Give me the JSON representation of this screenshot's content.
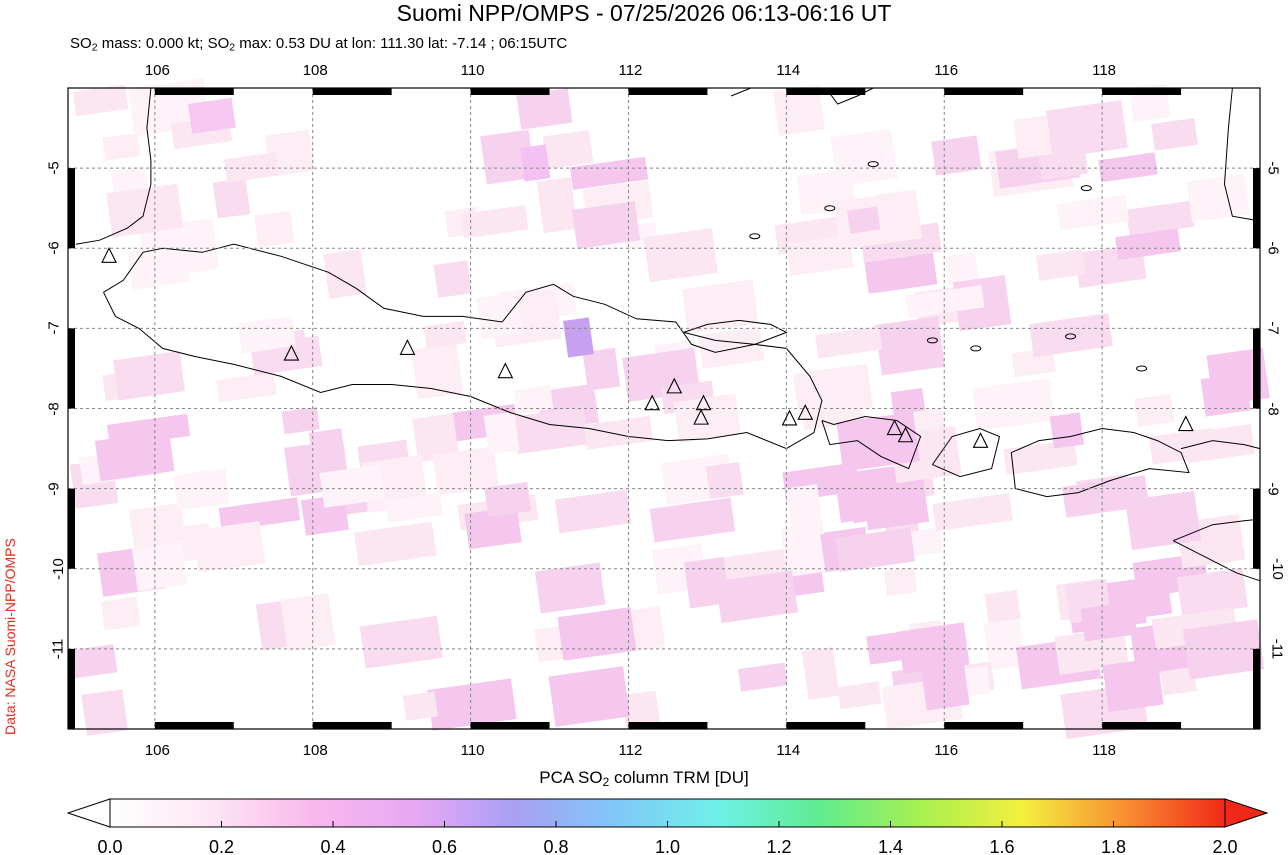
{
  "title": "Suomi NPP/OMPS - 07/25/2026 06:13-06:16 UT",
  "subtitle": {
    "part1": "SO",
    "sub1": "2",
    "part2": " mass: 0.000 kt; SO",
    "sub2": "2",
    "part3": " max: 0.53 DU at lon: 111.30 lat: -7.14 ; 06:15UTC"
  },
  "credit": "Data: NASA Suomi-NPP/OMPS",
  "map": {
    "lon_range": [
      104.9,
      120.0
    ],
    "lat_range": [
      -12.0,
      -4.0
    ],
    "lon_ticks": [
      "106",
      "108",
      "110",
      "112",
      "114",
      "116",
      "118"
    ],
    "lat_ticks": [
      "-5",
      "-6",
      "-7",
      "-8",
      "-9",
      "-10",
      "-11"
    ],
    "gridlines": true,
    "volcanoes": [
      {
        "lon": 105.42,
        "lat": -6.1
      },
      {
        "lon": 107.73,
        "lat": -7.32
      },
      {
        "lon": 109.2,
        "lat": -7.25
      },
      {
        "lon": 110.44,
        "lat": -7.54
      },
      {
        "lon": 112.3,
        "lat": -7.94
      },
      {
        "lon": 112.58,
        "lat": -7.73
      },
      {
        "lon": 112.95,
        "lat": -7.94
      },
      {
        "lon": 112.92,
        "lat": -8.12
      },
      {
        "lon": 114.04,
        "lat": -8.13
      },
      {
        "lon": 114.24,
        "lat": -8.06
      },
      {
        "lon": 115.37,
        "lat": -8.25
      },
      {
        "lon": 115.51,
        "lat": -8.34
      },
      {
        "lon": 116.46,
        "lat": -8.41
      },
      {
        "lon": 119.06,
        "lat": -8.2
      }
    ]
  },
  "colorbar": {
    "title_part1": "PCA SO",
    "title_sub": "2",
    "title_part2": " column TRM [DU]",
    "ticks": [
      "0.0",
      "0.2",
      "0.4",
      "0.6",
      "0.8",
      "1.0",
      "1.2",
      "1.4",
      "1.6",
      "1.8",
      "2.0"
    ],
    "colors": [
      "#ffffff",
      "#fde6f4",
      "#f9b8ec",
      "#e8a8f4",
      "#a8a0f4",
      "#80c8f8",
      "#70f0e8",
      "#60ec90",
      "#a8f050",
      "#f4f040",
      "#f89030",
      "#f02818"
    ]
  }
}
